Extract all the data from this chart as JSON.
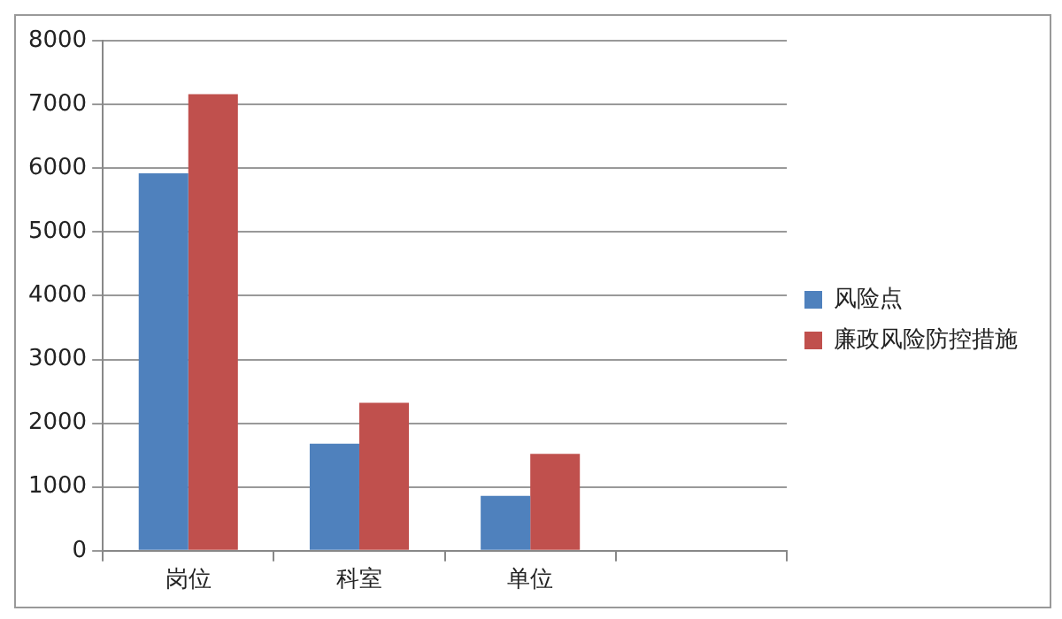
{
  "chart_data": {
    "type": "bar",
    "categories": [
      "岗位",
      "科室",
      "单位",
      null
    ],
    "series": [
      {
        "name": "风险点",
        "color": "#4f81bd",
        "values": [
          5920,
          1680,
          860,
          null
        ]
      },
      {
        "name": "廉政风险防控措施",
        "color": "#c0504d",
        "values": [
          7160,
          2320,
          1520,
          null
        ]
      }
    ],
    "ylim": [
      0,
      8000
    ],
    "yticks": [
      0,
      1000,
      2000,
      3000,
      4000,
      5000,
      6000,
      7000,
      8000
    ],
    "grid": "y",
    "legend": "right"
  }
}
